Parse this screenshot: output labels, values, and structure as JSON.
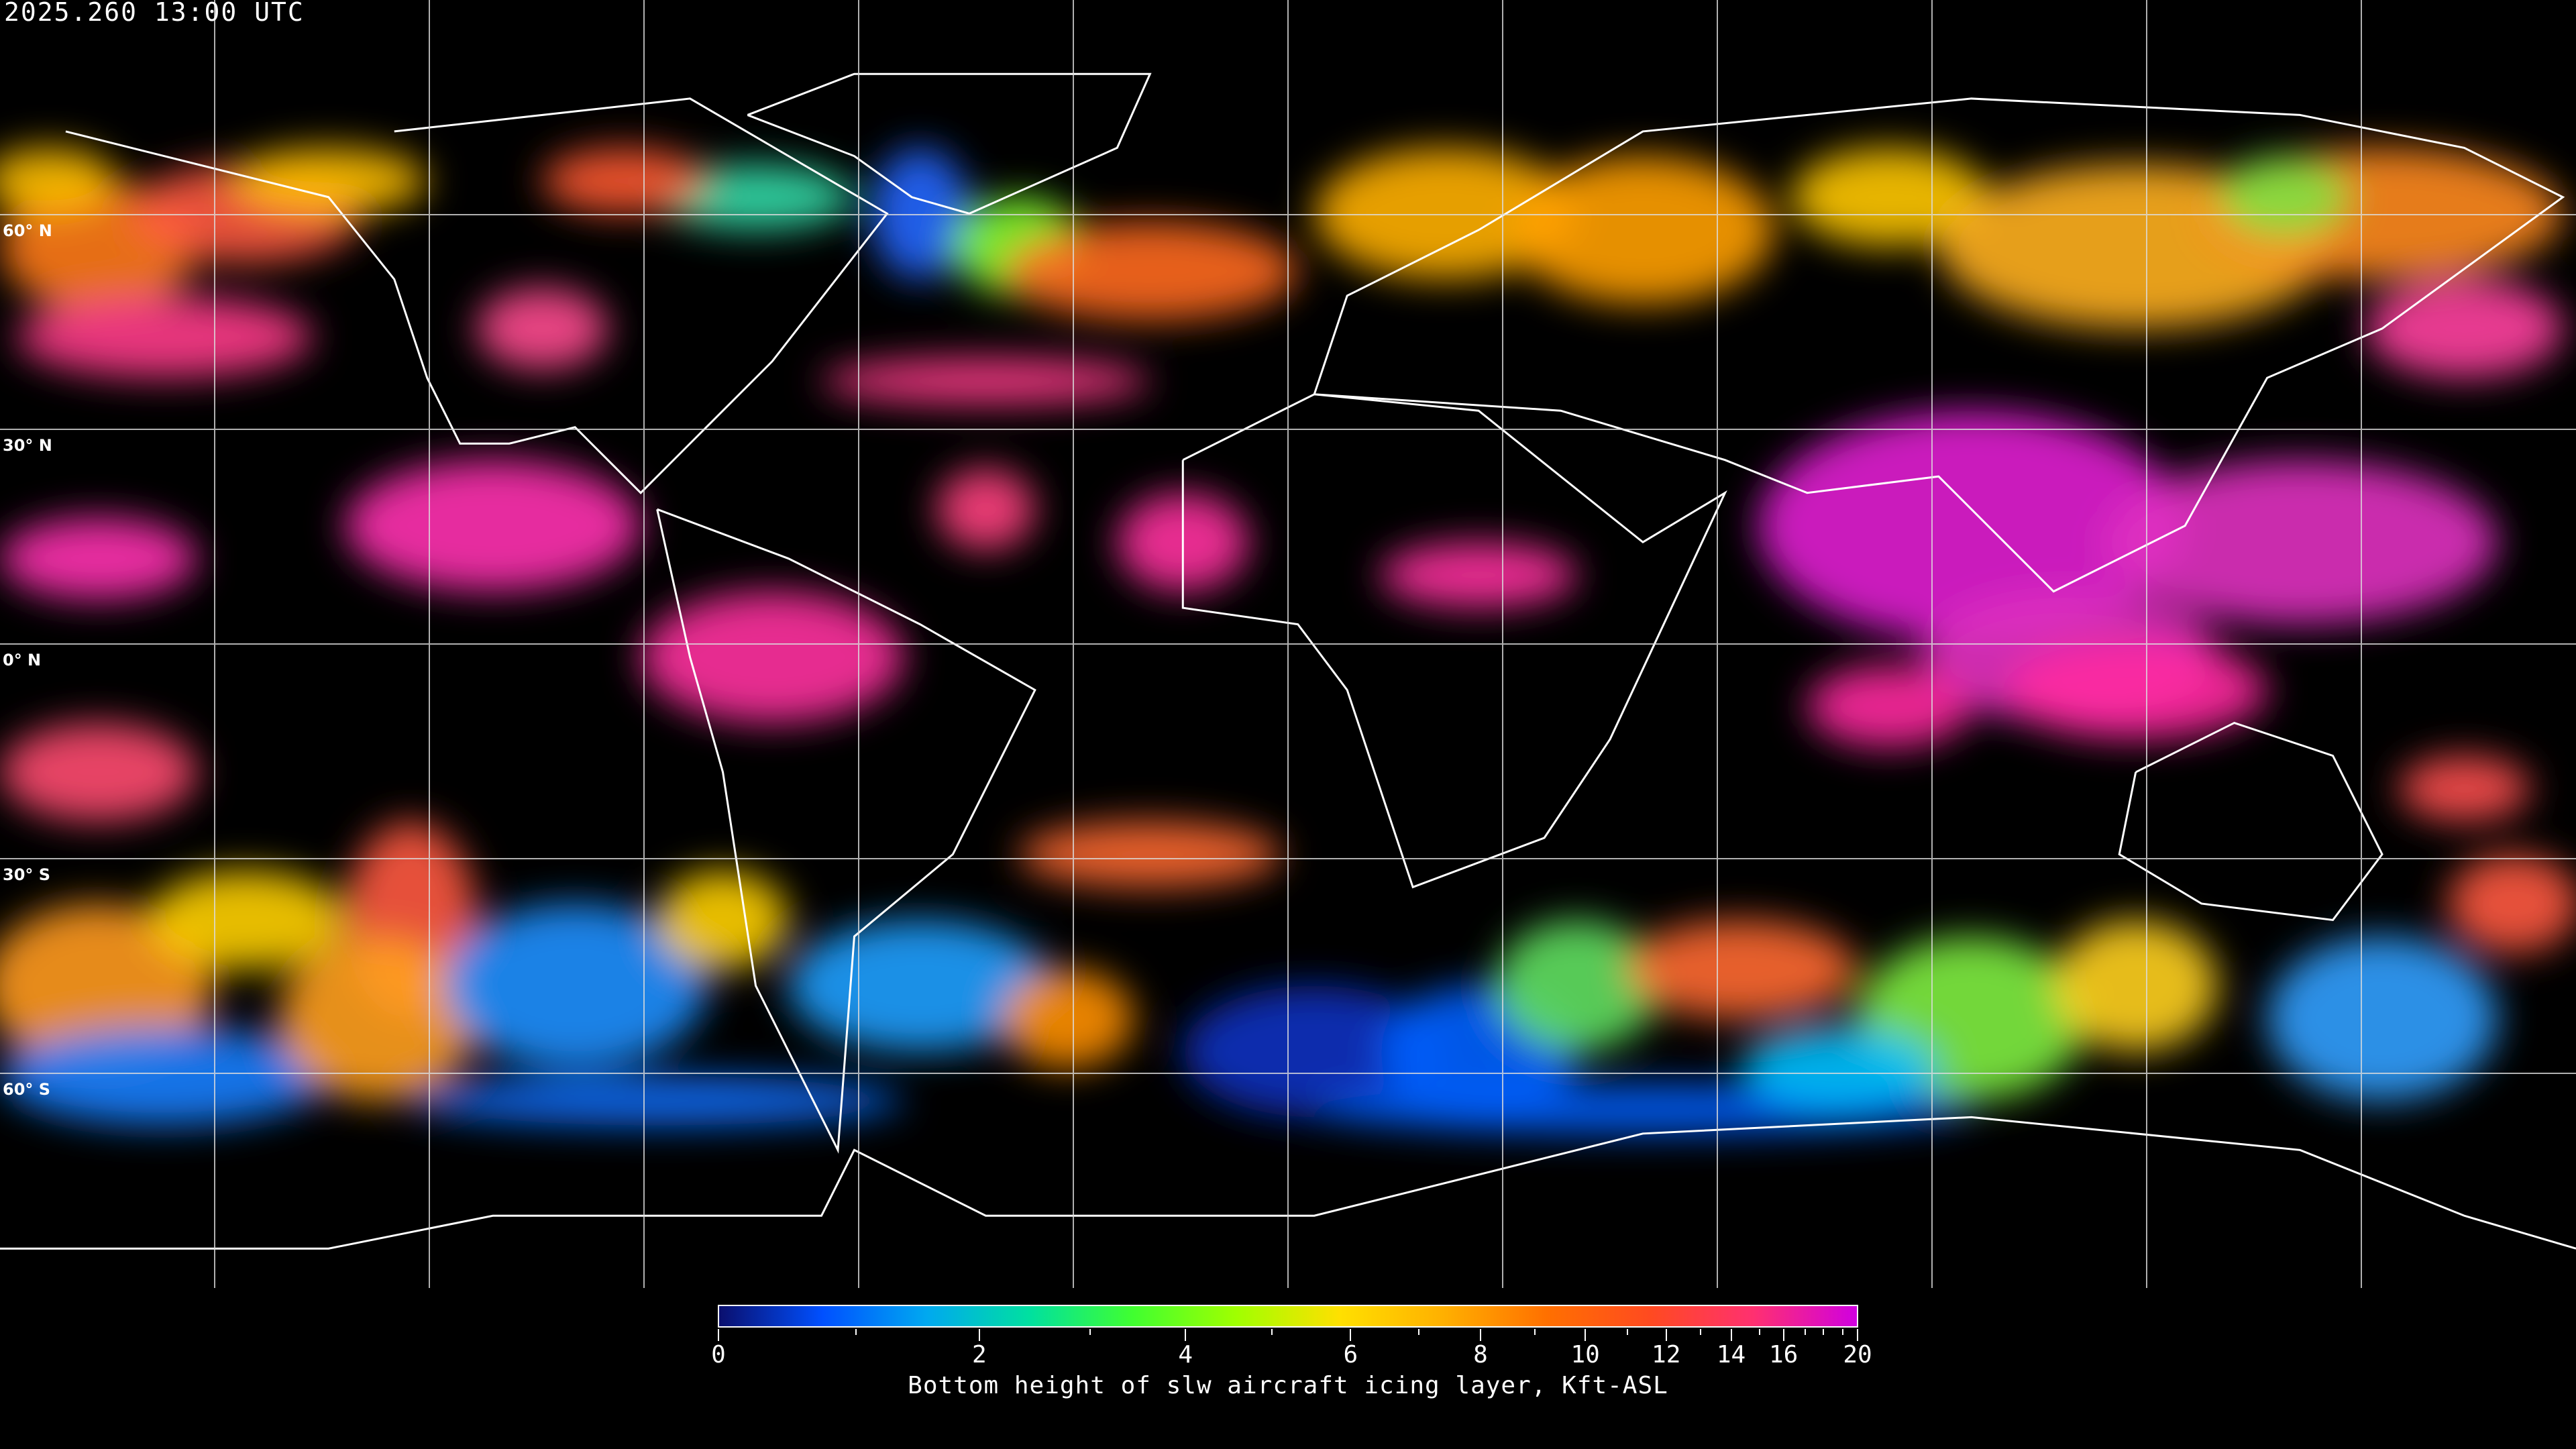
{
  "timestamp": "2025.260 13:00 UTC",
  "map": {
    "projection": "equirectangular",
    "lat_labels": [
      "60° N",
      "30° N",
      "0° N",
      "30° S",
      "60° S"
    ],
    "grid_spacing_deg": 30,
    "grid_color": "#ffffff",
    "coastline_color": "#ffffff",
    "background": "#000000"
  },
  "colorbar": {
    "title": "Bottom height of slw aircraft icing layer, Kft-ASL",
    "min": 0,
    "max": 20,
    "major_ticks": [
      "0",
      "2",
      "4",
      "6",
      "8",
      "10",
      "12",
      "14",
      "16",
      "20"
    ],
    "minor_ticks": [
      1,
      3,
      5,
      7,
      9,
      11,
      13,
      15,
      17,
      18,
      19
    ],
    "colors": [
      "#0a0f6e",
      "#0050ff",
      "#00a8f0",
      "#00e0a0",
      "#40ff30",
      "#a0ff00",
      "#ffe000",
      "#ffb000",
      "#ff7000",
      "#ff4a20",
      "#ff3070",
      "#d000e0"
    ]
  }
}
